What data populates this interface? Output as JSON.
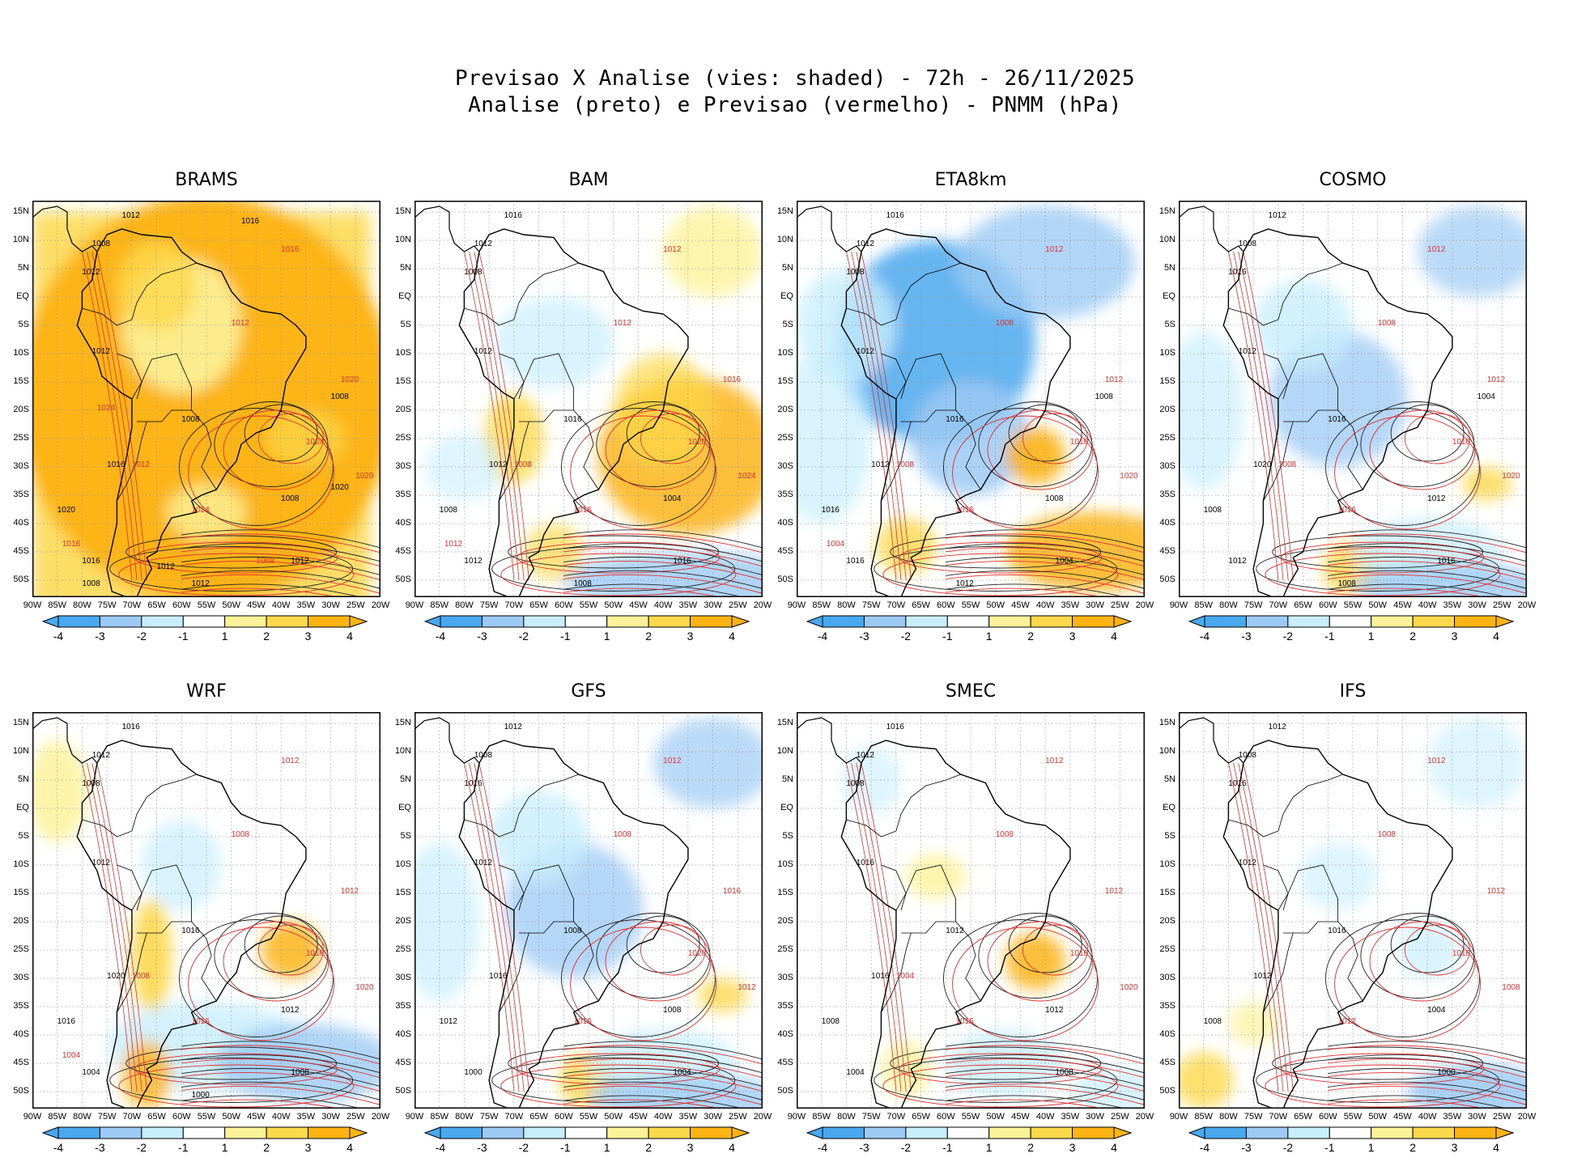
{
  "header": {
    "line1": "Previsao X Analise (vies: shaded) - 72h - 26/11/2025",
    "line2": "Analise (preto) e Previsao (vermelho) - PNMM (hPa)"
  },
  "axes": {
    "lat_labels": [
      "15N",
      "10N",
      "5N",
      "EQ",
      "5S",
      "10S",
      "15S",
      "20S",
      "25S",
      "30S",
      "35S",
      "40S",
      "45S",
      "50S"
    ],
    "lon_labels": [
      "90W",
      "85W",
      "80W",
      "75W",
      "70W",
      "65W",
      "60W",
      "55W",
      "50W",
      "45W",
      "40W",
      "35W",
      "30W",
      "25W",
      "20W"
    ]
  },
  "colorbar": {
    "labels": [
      "-4",
      "-3",
      "-2",
      "-1",
      "1",
      "2",
      "3",
      "4"
    ],
    "colors": [
      "#4aa8ee",
      "#9ccaf4",
      "#c8eefc",
      "#ffffff",
      "#fcf29a",
      "#fcd84c",
      "#fcb414"
    ]
  },
  "panels": [
    {
      "name": "BRAMS",
      "bias": "warm-strong",
      "contours_black": [
        "1012",
        "1008",
        "1012",
        "1012",
        "1008",
        "1016",
        "1020",
        "1008",
        "1012",
        "1016",
        "1012",
        "1008",
        "1020",
        "1016",
        "1012",
        "1008"
      ],
      "contours_red": [
        "1016",
        "1012",
        "1020",
        "1024",
        "1020",
        "1024",
        "1012",
        "1016",
        "1008",
        "1024"
      ]
    },
    {
      "name": "BAM",
      "bias": "warm-east",
      "contours_black": [
        "1016",
        "1012",
        "1008",
        "1012",
        "1016",
        "1012",
        "1008",
        "1004",
        "1016",
        "1012",
        "1008"
      ],
      "contours_red": [
        "1012",
        "1012",
        "1016",
        "1020",
        "1024",
        "1016",
        "1008",
        "1012"
      ]
    },
    {
      "name": "ETA8km",
      "bias": "cold",
      "contours_black": [
        "1016",
        "1012",
        "1008",
        "1012",
        "1016",
        "1012",
        "1016",
        "1008",
        "1004",
        "1016",
        "1012",
        "1008"
      ],
      "contours_red": [
        "1012",
        "1008",
        "1012",
        "1016",
        "1020",
        "1016",
        "1008",
        "1004"
      ]
    },
    {
      "name": "COSMO",
      "bias": "cold-mild",
      "contours_black": [
        "1012",
        "1008",
        "1016",
        "1012",
        "1016",
        "1020",
        "1008",
        "1012",
        "1016",
        "1012",
        "1008",
        "1004"
      ],
      "contours_red": [
        "1012",
        "1008",
        "1012",
        "1016",
        "1020",
        "1016",
        "1008"
      ]
    },
    {
      "name": "WRF",
      "bias": "mixed",
      "contours_black": [
        "1016",
        "1012",
        "1008",
        "1012",
        "1016",
        "1020",
        "1016",
        "1012",
        "1008",
        "1004",
        "1000"
      ],
      "contours_red": [
        "1012",
        "1008",
        "1012",
        "1016",
        "1020",
        "1016",
        "1008",
        "1004"
      ]
    },
    {
      "name": "GFS",
      "bias": "cold-mild",
      "contours_black": [
        "1012",
        "1008",
        "1016",
        "1012",
        "1008",
        "1016",
        "1012",
        "1008",
        "1004",
        "1000"
      ],
      "contours_red": [
        "1012",
        "1008",
        "1016",
        "1020",
        "1012",
        "1016"
      ]
    },
    {
      "name": "SMEC",
      "bias": "neutral",
      "contours_black": [
        "1016",
        "1012",
        "1008",
        "1016",
        "1012",
        "1016",
        "1008",
        "1012",
        "1008",
        "1004"
      ],
      "contours_red": [
        "1012",
        "1008",
        "1012",
        "1016",
        "1020",
        "1016",
        "1004"
      ]
    },
    {
      "name": "IFS",
      "bias": "neutral-cold",
      "contours_black": [
        "1012",
        "1008",
        "1016",
        "1012",
        "1016",
        "1012",
        "1008",
        "1004",
        "1000"
      ],
      "contours_red": [
        "1012",
        "1008",
        "1012",
        "1016",
        "1008",
        "1012"
      ]
    }
  ]
}
